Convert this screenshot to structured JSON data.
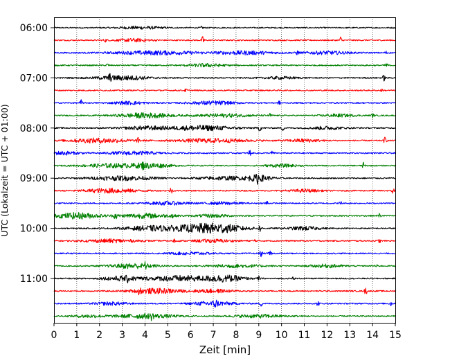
{
  "chart_data": {
    "type": "line",
    "title": "",
    "xlabel": "Zeit  [min]",
    "ylabel": "UTC (Lokalzeit = UTC + 01:00)",
    "xlim": [
      0,
      15
    ],
    "x_ticks": [
      0,
      1,
      2,
      3,
      4,
      5,
      6,
      7,
      8,
      9,
      10,
      11,
      12,
      13,
      14,
      15
    ],
    "x_tick_labels": [
      "0",
      "1",
      "2",
      "3",
      "4",
      "5",
      "6",
      "7",
      "8",
      "9",
      "10",
      "11",
      "12",
      "13",
      "14",
      "15"
    ],
    "y_tick_labels": [
      "06:00",
      "07:00",
      "08:00",
      "09:00",
      "10:00",
      "11:00"
    ],
    "y_tick_trace_index": [
      0,
      4,
      8,
      12,
      16,
      20
    ],
    "grid": "vertical dotted at each minute",
    "legend": "none",
    "color_cycle": [
      "#000000",
      "#ff0000",
      "#0000ff",
      "#008000"
    ],
    "traces": [
      {
        "start": "06:00",
        "events": [
          [
            6.5,
            0.6
          ]
        ],
        "bursts": [
          [
            3.8,
            0.6,
            0.7
          ]
        ]
      },
      {
        "start": "06:15",
        "events": [
          [
            2.25,
            0.8
          ],
          [
            6.55,
            2.3
          ],
          [
            12.6,
            2.0
          ]
        ],
        "bursts": [
          [
            3.5,
            0.8,
            0.5
          ]
        ]
      },
      {
        "start": "06:30",
        "events": [
          [
            10.7,
            1.0
          ],
          [
            14.6,
            0.8
          ]
        ],
        "bursts": [
          [
            4.5,
            1.0,
            1.3
          ],
          [
            8.4,
            0.9,
            0.9
          ],
          [
            12.0,
            0.8,
            0.7
          ]
        ]
      },
      {
        "start": "06:45",
        "events": [
          [
            2.35,
            1.0
          ],
          [
            14.6,
            1.6
          ]
        ],
        "bursts": [
          [
            6.7,
            0.8,
            0.6
          ]
        ]
      },
      {
        "start": "07:00",
        "events": [
          [
            2.45,
            1.6
          ],
          [
            14.5,
            1.6
          ]
        ],
        "bursts": [
          [
            3.0,
            1.2,
            0.8
          ],
          [
            10.0,
            0.6,
            0.5
          ]
        ]
      },
      {
        "start": "07:15",
        "events": [
          [
            5.8,
            0.8
          ],
          [
            14.4,
            0.6
          ]
        ],
        "bursts": []
      },
      {
        "start": "07:30",
        "events": [
          [
            1.2,
            1.6
          ],
          [
            9.9,
            1.0
          ]
        ],
        "bursts": [
          [
            7.0,
            1.0,
            0.7
          ],
          [
            3.3,
            0.8,
            0.5
          ]
        ]
      },
      {
        "start": "07:45",
        "events": [
          [
            4.1,
            1.4
          ],
          [
            9.5,
            1.0
          ],
          [
            14.0,
            1.0
          ]
        ],
        "bursts": [
          [
            4.0,
            1.3,
            0.8
          ],
          [
            7.5,
            0.8,
            0.8
          ],
          [
            12.5,
            0.7,
            0.5
          ]
        ]
      },
      {
        "start": "08:00",
        "events": [
          [
            9.05,
            2.0
          ],
          [
            10.05,
            1.4
          ]
        ],
        "bursts": [
          [
            6.5,
            1.3,
            1.0
          ],
          [
            4.0,
            0.9,
            0.7
          ],
          [
            12.0,
            0.8,
            0.5
          ]
        ]
      },
      {
        "start": "08:15",
        "events": [
          [
            3.7,
            1.2
          ],
          [
            14.55,
            1.8
          ]
        ],
        "bursts": [
          [
            2.0,
            1.2,
            0.9
          ],
          [
            7.0,
            1.0,
            1.1
          ],
          [
            11.0,
            0.8,
            0.5
          ]
        ]
      },
      {
        "start": "08:30",
        "events": [
          [
            8.6,
            1.8
          ],
          [
            9.6,
            1.2
          ]
        ],
        "bursts": [
          [
            3.5,
            0.9,
            0.8
          ],
          [
            0.4,
            0.9,
            0.5
          ]
        ]
      },
      {
        "start": "08:45",
        "events": [
          [
            13.6,
            1.6
          ],
          [
            3.9,
            1.0
          ]
        ],
        "bursts": [
          [
            4.2,
            1.3,
            0.6
          ],
          [
            2.5,
            1.0,
            0.8
          ],
          [
            10.0,
            0.7,
            0.5
          ]
        ]
      },
      {
        "start": "09:00",
        "events": [
          [
            8.95,
            1.6
          ]
        ],
        "bursts": [
          [
            9.0,
            1.5,
            0.4
          ],
          [
            3.0,
            1.1,
            1.0
          ],
          [
            7.5,
            0.9,
            0.8
          ]
        ]
      },
      {
        "start": "09:15",
        "events": [
          [
            5.15,
            1.8
          ],
          [
            14.9,
            1.8
          ]
        ],
        "bursts": [
          [
            2.5,
            1.2,
            0.8
          ],
          [
            11.0,
            0.7,
            0.5
          ]
        ]
      },
      {
        "start": "09:30",
        "events": [
          [
            9.35,
            1.6
          ],
          [
            12.6,
            1.0
          ]
        ],
        "bursts": [
          [
            5.0,
            0.8,
            0.7
          ],
          [
            7.5,
            0.7,
            0.5
          ]
        ]
      },
      {
        "start": "09:45",
        "events": [
          [
            2.7,
            2.0
          ],
          [
            5.2,
            1.6
          ],
          [
            14.3,
            1.4
          ]
        ],
        "bursts": [
          [
            1.0,
            1.6,
            0.7
          ],
          [
            4.0,
            1.2,
            0.8
          ],
          [
            7.0,
            0.8,
            0.5
          ]
        ]
      },
      {
        "start": "10:00",
        "events": [
          [
            9.05,
            1.6
          ]
        ],
        "bursts": [
          [
            7.2,
            2.4,
            0.8
          ],
          [
            4.3,
            1.3,
            0.8
          ],
          [
            6.0,
            1.1,
            0.7
          ],
          [
            11.0,
            0.9,
            0.5
          ]
        ]
      },
      {
        "start": "10:15",
        "events": [
          [
            5.3,
            1.4
          ],
          [
            8.8,
            1.0
          ],
          [
            14.3,
            1.0
          ]
        ],
        "bursts": [
          [
            2.5,
            0.9,
            0.8
          ],
          [
            7.0,
            0.8,
            0.6
          ]
        ]
      },
      {
        "start": "10:30",
        "events": [
          [
            9.1,
            1.6
          ],
          [
            9.5,
            1.4
          ]
        ],
        "bursts": [
          [
            6.0,
            0.7,
            0.6
          ]
        ]
      },
      {
        "start": "10:45",
        "events": [
          [
            4.0,
            1.4
          ],
          [
            14.15,
            1.0
          ]
        ],
        "bursts": [
          [
            3.5,
            1.3,
            0.7
          ],
          [
            8.0,
            0.8,
            0.8
          ],
          [
            12.0,
            0.8,
            0.5
          ]
        ]
      },
      {
        "start": "11:00",
        "events": [
          [
            3.25,
            1.2
          ],
          [
            9.0,
            1.0
          ],
          [
            10.5,
            1.0
          ]
        ],
        "bursts": [
          [
            7.5,
            1.7,
            0.6
          ],
          [
            5.5,
            1.5,
            0.9
          ],
          [
            3.0,
            1.2,
            0.6
          ]
        ]
      },
      {
        "start": "11:15",
        "events": [
          [
            3.75,
            2.0
          ],
          [
            13.7,
            2.0
          ]
        ],
        "bursts": [
          [
            4.5,
            1.3,
            0.8
          ],
          [
            7.0,
            0.9,
            0.6
          ]
        ]
      },
      {
        "start": "11:30",
        "events": [
          [
            7.1,
            1.8
          ],
          [
            9.1,
            1.4
          ],
          [
            11.6,
            1.4
          ],
          [
            14.8,
            1.4
          ]
        ],
        "bursts": [
          [
            7.0,
            1.2,
            0.6
          ],
          [
            2.5,
            0.8,
            0.5
          ]
        ]
      },
      {
        "start": "11:45",
        "events": [
          [
            4.3,
            1.4
          ]
        ],
        "bursts": [
          [
            4.0,
            1.2,
            0.9
          ],
          [
            9.0,
            0.8,
            0.8
          ],
          [
            1.5,
            0.7,
            0.5
          ]
        ]
      }
    ]
  }
}
